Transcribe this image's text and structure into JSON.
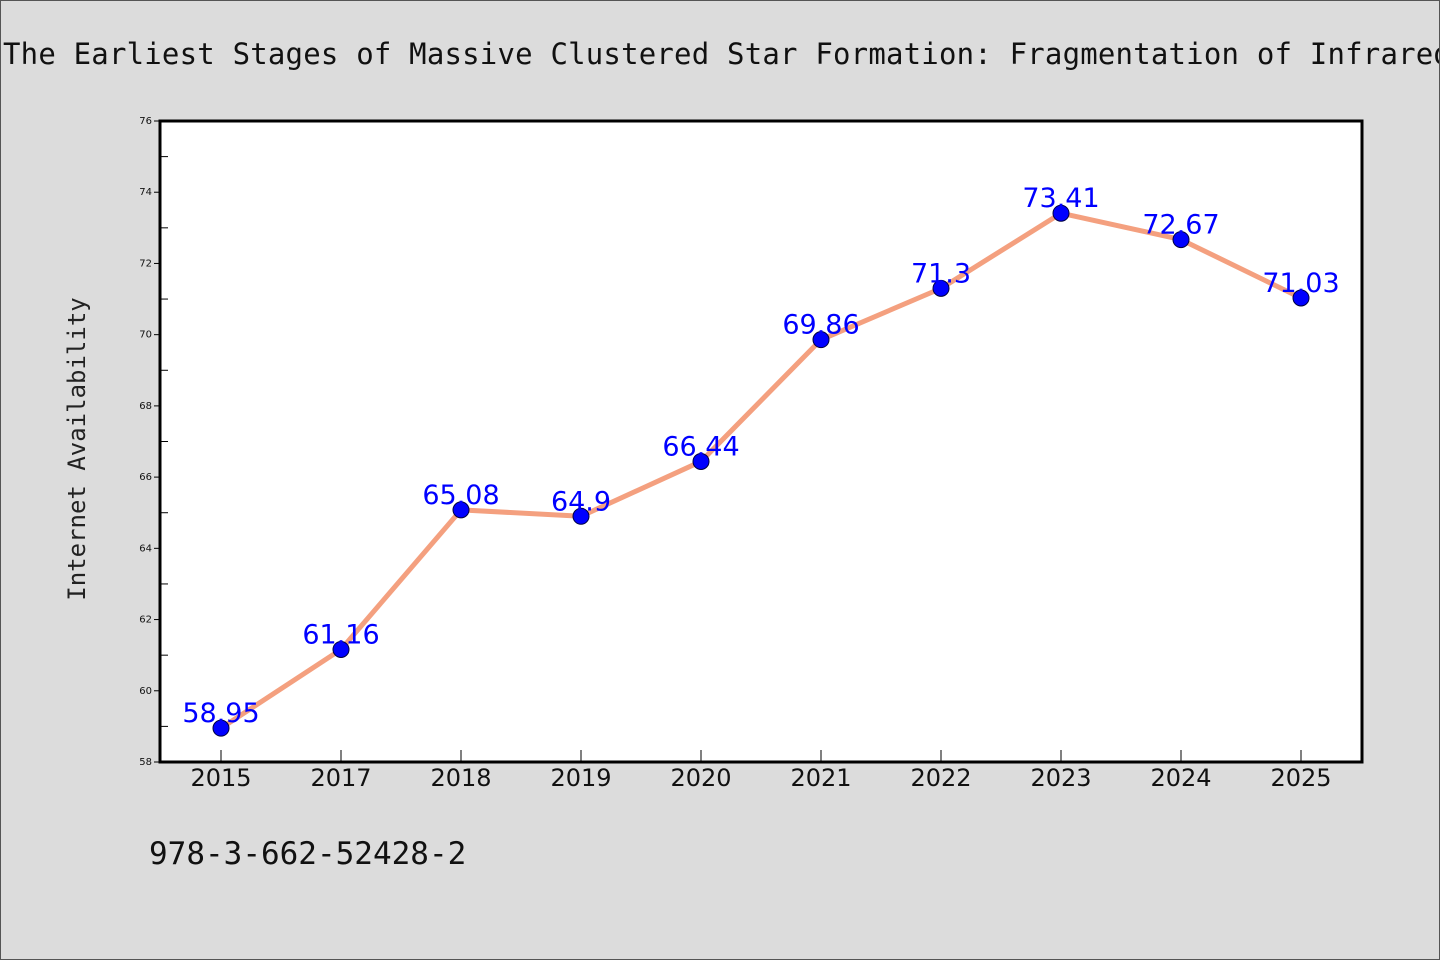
{
  "page": {
    "title": "The Earliest Stages of Massive Clustered Star Formation: Fragmentation of Infrared Dark Clouds",
    "isbn": "978-3-662-52428-2"
  },
  "colors": {
    "background": "#dcdcdc",
    "plot_background": "#ffffff",
    "line": "#f4a07f",
    "marker": "#0000ff",
    "data_label": "#0000ff",
    "axis": "#000000"
  },
  "chart_data": {
    "type": "line",
    "title": "The Earliest Stages of Massive Clustered Star Formation: Fragmentation of Infrared Dark Clouds",
    "xlabel": "",
    "ylabel": "Internet Availability",
    "categories": [
      "2015",
      "2017",
      "2018",
      "2019",
      "2020",
      "2021",
      "2022",
      "2023",
      "2024",
      "2025"
    ],
    "series": [
      {
        "values": [
          58.95,
          61.16,
          65.08,
          64.9,
          66.44,
          69.86,
          71.3,
          73.41,
          72.67,
          71.03
        ],
        "labels": [
          "58.95",
          "61.16",
          "65.08",
          "64.9",
          "66.44",
          "69.86",
          "71.3",
          "73.41",
          "72.67",
          "71.03"
        ]
      }
    ],
    "ylim": [
      58,
      76
    ],
    "yticks": [
      58,
      60,
      62,
      64,
      66,
      68,
      70,
      72,
      74,
      76
    ],
    "grid": false,
    "legend": "none",
    "markers": "circle",
    "data_labels": true
  }
}
